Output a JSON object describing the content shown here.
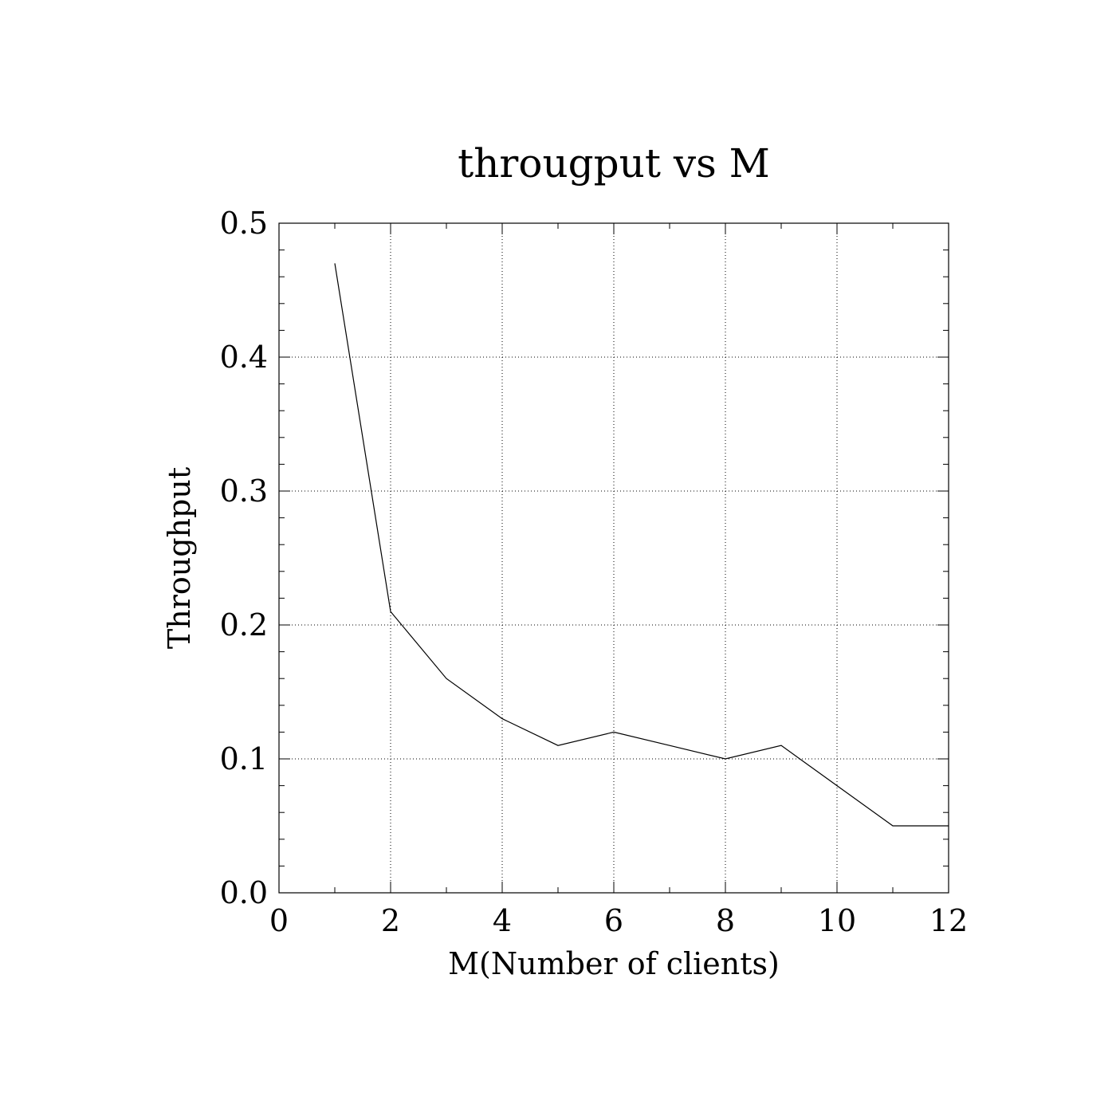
{
  "chart_data": {
    "type": "line",
    "title": "througput vs M",
    "xlabel": "M(Number of clients)",
    "ylabel": "Throughput",
    "xlim": [
      0,
      12
    ],
    "ylim": [
      0.0,
      0.5
    ],
    "x_ticks": [
      "0",
      "2",
      "4",
      "6",
      "8",
      "10",
      "12"
    ],
    "y_ticks": [
      "0.0",
      "0.1",
      "0.2",
      "0.3",
      "0.4",
      "0.5"
    ],
    "grid": true,
    "series": [
      {
        "x": [
          1,
          2,
          3,
          4,
          5,
          6,
          7,
          8,
          9,
          10,
          11,
          12
        ],
        "values": [
          0.47,
          0.21,
          0.16,
          0.13,
          0.11,
          0.12,
          0.11,
          0.1,
          0.11,
          0.08,
          0.05,
          0.05
        ]
      }
    ],
    "colors": {
      "line": "#000000",
      "background": "#ffffff"
    }
  }
}
